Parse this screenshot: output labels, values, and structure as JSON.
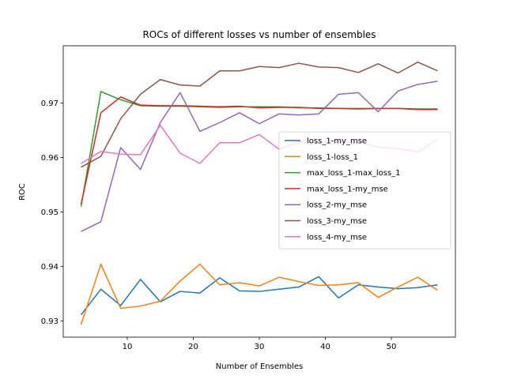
{
  "chart_data": {
    "type": "line",
    "title": "ROCs of different losses vs number of ensembles",
    "xlabel": "Number of Ensembles",
    "ylabel": "ROC",
    "xlim": [
      0.3,
      59.7
    ],
    "ylim": [
      0.927,
      0.9805
    ],
    "xticks": [
      10,
      20,
      30,
      40,
      50
    ],
    "yticks": [
      0.93,
      0.94,
      0.95,
      0.96,
      0.97
    ],
    "ytick_labels": [
      "0.93",
      "0.94",
      "0.95",
      "0.96",
      "0.97"
    ],
    "grid": false,
    "legend_placement": "center-right",
    "x": [
      3,
      6,
      9,
      12,
      15,
      18,
      21,
      24,
      27,
      30,
      33,
      36,
      39,
      42,
      45,
      48,
      51,
      54,
      57
    ],
    "series": [
      {
        "name": "loss_1-my_mse",
        "color": "#1f77b4",
        "values": [
          0.9311,
          0.9358,
          0.9328,
          0.9376,
          0.9335,
          0.9354,
          0.9351,
          0.9379,
          0.9355,
          0.9354,
          0.9358,
          0.9362,
          0.9381,
          0.9342,
          0.9366,
          0.9362,
          0.9359,
          0.9361,
          0.9366
        ]
      },
      {
        "name": "loss_1-loss_1",
        "color": "#ff7f0e",
        "values": [
          0.9293,
          0.9404,
          0.9323,
          0.9327,
          0.9336,
          0.9373,
          0.9404,
          0.9366,
          0.937,
          0.9364,
          0.938,
          0.9372,
          0.9365,
          0.9366,
          0.937,
          0.9343,
          0.9362,
          0.938,
          0.9356
        ]
      },
      {
        "name": "max_loss_1-max_loss_1",
        "color": "#2ca02c",
        "values": [
          0.951,
          0.9721,
          0.9706,
          0.9695,
          0.9694,
          0.9694,
          0.9693,
          0.9692,
          0.9693,
          0.9693,
          0.9693,
          0.9691,
          0.9691,
          0.969,
          0.969,
          0.969,
          0.969,
          0.9689,
          0.9689
        ]
      },
      {
        "name": "max_loss_1-my_mse",
        "color": "#d62728",
        "values": [
          0.9514,
          0.9682,
          0.9711,
          0.9696,
          0.9695,
          0.9695,
          0.9694,
          0.9693,
          0.9694,
          0.9691,
          0.9692,
          0.9692,
          0.969,
          0.969,
          0.9689,
          0.969,
          0.969,
          0.9688,
          0.9688
        ]
      },
      {
        "name": "loss_2-my_mse",
        "color": "#9467bd",
        "values": [
          0.9464,
          0.9482,
          0.9618,
          0.9578,
          0.9664,
          0.9719,
          0.9648,
          0.9664,
          0.9682,
          0.9662,
          0.968,
          0.9678,
          0.968,
          0.9716,
          0.9719,
          0.9684,
          0.9722,
          0.9734,
          0.974
        ]
      },
      {
        "name": "loss_3-my_mse",
        "color": "#8c564b",
        "values": [
          0.9582,
          0.9602,
          0.9671,
          0.9716,
          0.9743,
          0.9733,
          0.9731,
          0.9759,
          0.9759,
          0.9767,
          0.9765,
          0.9773,
          0.9766,
          0.9765,
          0.9756,
          0.9772,
          0.9755,
          0.9775,
          0.9759
        ]
      },
      {
        "name": "loss_4-my_mse",
        "color": "#e377c2",
        "values": [
          0.9589,
          0.9611,
          0.9606,
          0.9605,
          0.9659,
          0.9608,
          0.9589,
          0.9627,
          0.9627,
          0.9642,
          0.9615,
          0.9629,
          0.9626,
          0.9628,
          0.9628,
          0.9619,
          0.9616,
          0.961,
          0.9633
        ]
      }
    ]
  }
}
